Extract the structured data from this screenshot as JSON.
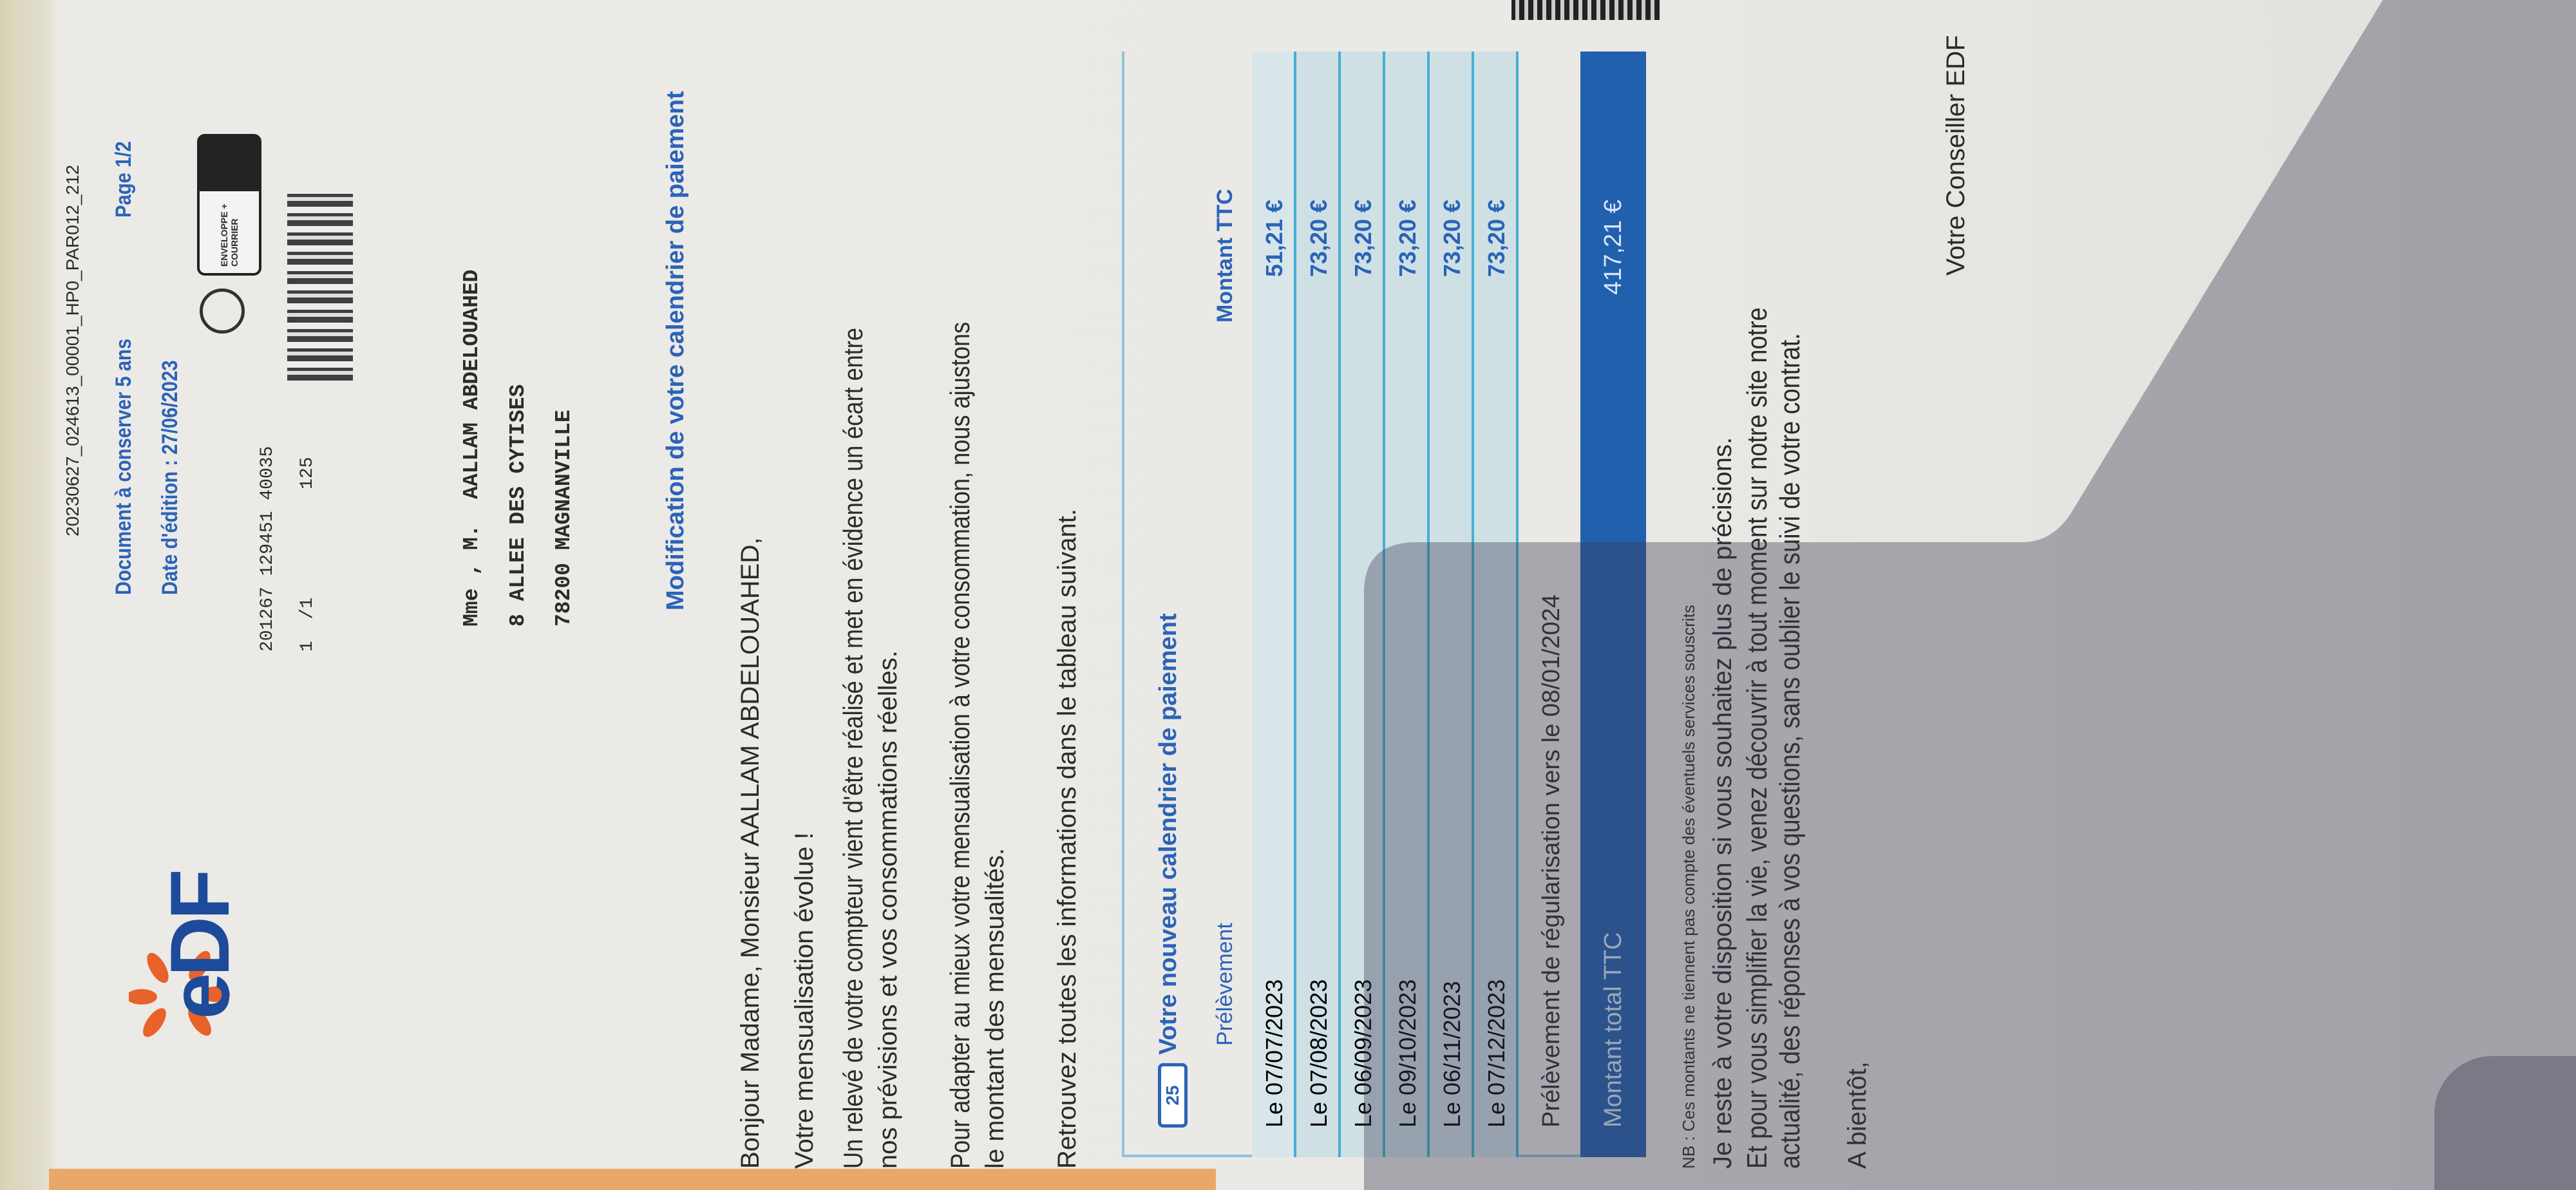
{
  "header": {
    "doc_id": "20230627_024613_00001_HP0_PAR012_212",
    "keep_notice": "Document à conserver 5 ans",
    "page": "Page 1/2",
    "edition_date": "Date d'édition : 27/06/2023",
    "brand": "eDF",
    "badge": "ENVELOPPE + COURRIER",
    "ref_line1": "201267 129451 40035",
    "ref_line2": "1  /1          125"
  },
  "address": [
    "Mme , M.  AALLAM ABDELOUAHED",
    "8 ALLEE DES CYTISES",
    "78200 MAGNANVILLE"
  ],
  "title": "Modification de votre calendrier de paiement",
  "greeting": "Bonjour Madame, Monsieur AALLAM ABDELOUAHED,",
  "paragraphs": {
    "p1": "Votre mensualisation évolue !",
    "p2a": "Un relevé de votre compteur vient d'être réalisé et met en évidence un écart entre",
    "p2b": "nos prévisions et vos consommations réelles.",
    "p3a": "Pour adapter au mieux votre mensualisation à votre consommation, nous ajustons",
    "p3b": "le montant des mensualités.",
    "p4": "Retrouvez toutes les informations dans le tableau suivant."
  },
  "table": {
    "title": "Votre nouveau calendrier de paiement",
    "icon_day": "25",
    "col_date": "Prélèvement",
    "col_amount": "Montant TTC",
    "rows": [
      {
        "date": "Le 07/07/2023",
        "amount": "51,21 €"
      },
      {
        "date": "Le 07/08/2023",
        "amount": "73,20 €"
      },
      {
        "date": "Le 06/09/2023",
        "amount": "73,20 €"
      },
      {
        "date": "Le 09/10/2023",
        "amount": "73,20 €"
      },
      {
        "date": "Le 06/11/2023",
        "amount": "73,20 €"
      },
      {
        "date": "Le 07/12/2023",
        "amount": "73,20 €"
      }
    ],
    "regularisation": "Prélèvement de régularisation vers le 08/01/2024",
    "total_label": "Montant total TTC",
    "total_value": "417,21 €"
  },
  "nb": "NB : Ces montants ne tiennent pas compte des éventuels services souscrits",
  "closing": {
    "l1": "Je reste à votre disposition si vous souhaitez plus de précisions.",
    "l2": "Et pour vous simplifier la vie,  venez découvrir à tout moment sur notre site notre",
    "l3": "actualité, des réponses à vos questions,  sans oublier le suivi de votre contrat.",
    "bye": "A bientôt,",
    "signature": "Votre Conseiller EDF"
  },
  "colors": {
    "brand_blue": "#2a63b8",
    "brand_orange": "#e8622a",
    "total_band": "#2160ad",
    "row_fill": "#cfe0e5"
  }
}
